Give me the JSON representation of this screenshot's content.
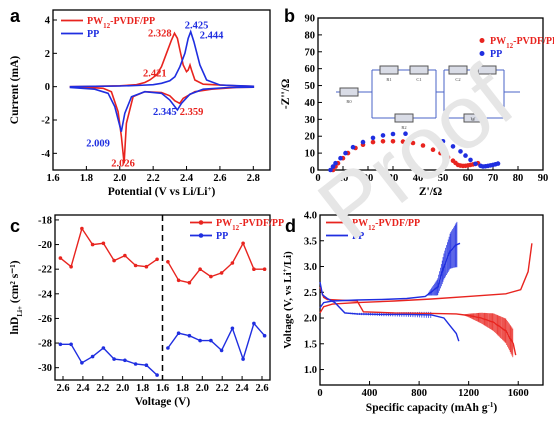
{
  "colors": {
    "red": "#e8241f",
    "blue": "#1f2ee0",
    "axis": "#000000",
    "circuit": "#4a63c7"
  },
  "watermark": "Proof",
  "chart_data": [
    {
      "panel_label": "a",
      "type": "line",
      "xlabel_main": "Potential (V vs Li/Li",
      "xlabel_sup": "+",
      "xlabel_end": ")",
      "ylabel": "Current (mA)",
      "xlim": [
        1.6,
        2.9
      ],
      "ylim": [
        -5,
        4.6
      ],
      "xticks": [
        "1.6",
        "1.8",
        "2.0",
        "2.2",
        "2.4",
        "2.6",
        "2.8"
      ],
      "xtick_values": [
        1.6,
        1.8,
        2.0,
        2.2,
        2.4,
        2.6,
        2.8
      ],
      "yticks": [
        "-4",
        "-2",
        "0",
        "2",
        "4"
      ],
      "ytick_values": [
        -4,
        -2,
        0,
        2,
        4
      ],
      "legend": [
        "PW",
        "12",
        "-PVDF/PP",
        "PP"
      ],
      "legend_position": "top-left",
      "annotations": [
        {
          "text": "2.328",
          "x": 2.24,
          "y": 3.0,
          "color": "red"
        },
        {
          "text": "2.425",
          "x": 2.46,
          "y": 3.5,
          "color": "blue"
        },
        {
          "text": "2.444",
          "x": 2.55,
          "y": 2.9,
          "color": "blue"
        },
        {
          "text": "2.421",
          "x": 2.21,
          "y": 0.6,
          "color": "red"
        },
        {
          "text": "2.345",
          "x": 2.27,
          "y": -1.7,
          "color": "blue"
        },
        {
          "text": "2.359",
          "x": 2.43,
          "y": -1.7,
          "color": "red"
        },
        {
          "text": "2.009",
          "x": 1.87,
          "y": -3.6,
          "color": "blue"
        },
        {
          "text": "2.026",
          "x": 2.02,
          "y": -4.8,
          "color": "red"
        }
      ],
      "series": [
        {
          "name": "PW12-PVDF/PP",
          "color": "red",
          "x": [
            1.7,
            1.8,
            1.9,
            1.95,
            1.99,
            2.01,
            2.026,
            2.04,
            2.08,
            2.15,
            2.25,
            2.3,
            2.33,
            2.359,
            2.38,
            2.45,
            2.55,
            2.7,
            2.8,
            2.8,
            2.7,
            2.5,
            2.45,
            2.43,
            2.421,
            2.41,
            2.4,
            2.38,
            2.36,
            2.345,
            2.328,
            2.31,
            2.28,
            2.25,
            2.22,
            2.18,
            2.15,
            2.1,
            2.0,
            1.85,
            1.7
          ],
          "y": [
            -0.02,
            -0.04,
            -0.1,
            -0.3,
            -1.5,
            -3.0,
            -4.6,
            -2.2,
            -0.6,
            -0.3,
            -0.35,
            -0.55,
            -0.85,
            -1.0,
            -0.7,
            -0.3,
            -0.15,
            -0.05,
            -0.03,
            0.02,
            0.05,
            0.15,
            0.4,
            1.0,
            1.3,
            1.0,
            0.9,
            1.3,
            2.2,
            2.9,
            3.2,
            2.8,
            2.0,
            1.2,
            0.7,
            0.4,
            0.25,
            0.12,
            0.05,
            0.02,
            0.0
          ]
        },
        {
          "name": "PP",
          "color": "blue",
          "x": [
            1.7,
            1.85,
            1.93,
            1.97,
            2.009,
            2.03,
            2.07,
            2.15,
            2.25,
            2.3,
            2.345,
            2.37,
            2.42,
            2.5,
            2.65,
            2.8,
            2.8,
            2.6,
            2.52,
            2.48,
            2.444,
            2.425,
            2.41,
            2.39,
            2.36,
            2.33,
            2.3,
            2.25,
            2.2,
            2.1,
            2.0,
            1.85,
            1.7
          ],
          "y": [
            -0.05,
            -0.15,
            -0.4,
            -1.2,
            -2.7,
            -1.6,
            -0.6,
            -0.3,
            -0.4,
            -0.8,
            -1.4,
            -1.0,
            -0.45,
            -0.15,
            -0.05,
            -0.03,
            0.02,
            0.1,
            0.4,
            1.3,
            2.7,
            3.3,
            2.9,
            2.0,
            1.2,
            0.6,
            0.35,
            0.2,
            0.12,
            0.07,
            0.04,
            0.02,
            0.0
          ]
        }
      ]
    },
    {
      "panel_label": "b",
      "type": "scatter",
      "xlabel": "Z'/Ω",
      "ylabel": "-Z''/Ω",
      "xlim": [
        0,
        90
      ],
      "ylim": [
        0,
        90
      ],
      "xticks": [
        "0",
        "10",
        "20",
        "30",
        "40",
        "50",
        "60",
        "70",
        "80",
        "90"
      ],
      "xtick_values": [
        0,
        10,
        20,
        30,
        40,
        50,
        60,
        70,
        80,
        90
      ],
      "yticks": [
        "0",
        "10",
        "20",
        "30",
        "40",
        "50",
        "60",
        "70",
        "80",
        "90"
      ],
      "ytick_values": [
        0,
        10,
        20,
        30,
        40,
        50,
        60,
        70,
        80,
        90
      ],
      "legend": [
        "PW",
        "12",
        "-PVDF/PP",
        "PP"
      ],
      "legend_position": "top-right",
      "circuit_labels": [
        "R0",
        "R1",
        "C1",
        "R2",
        "C2",
        "W"
      ],
      "series": [
        {
          "name": "PW12-PVDF/PP",
          "color": "red",
          "x": [
            6,
            7,
            8,
            10,
            12,
            15,
            18,
            22,
            26,
            30,
            34,
            38,
            42,
            46,
            49,
            52,
            54,
            55,
            56,
            57,
            58,
            59,
            60,
            61,
            62,
            63,
            64
          ],
          "y": [
            0,
            2,
            4,
            7,
            10,
            13,
            15,
            16.5,
            17,
            17,
            16.8,
            16,
            14.5,
            12,
            10,
            7.5,
            5.5,
            4.2,
            3,
            2.6,
            2.4,
            2.5,
            2.7,
            3,
            3.3,
            3.6,
            4
          ]
        },
        {
          "name": "PP",
          "color": "blue",
          "x": [
            5,
            6,
            7,
            9,
            11,
            14,
            18,
            22,
            26,
            30,
            35,
            40,
            45,
            50,
            54,
            57,
            59,
            61,
            63,
            65,
            66,
            67,
            68,
            69,
            70,
            71,
            72
          ],
          "y": [
            0,
            2,
            4,
            7,
            10,
            13.5,
            16.5,
            19,
            20.5,
            21.3,
            21.5,
            21,
            19.5,
            17,
            14,
            11,
            8.5,
            6,
            3.7,
            2.5,
            2.1,
            2.2,
            2.4,
            2.7,
            3,
            3.4,
            3.8
          ]
        }
      ]
    },
    {
      "panel_label": "c",
      "type": "line",
      "xlabel": "Voltage (V)",
      "ylabel_main": "lnD",
      "ylabel_sub": "Li+",
      "ylabel_end": " (cm² s⁻¹)",
      "ylim": [
        -31,
        -17.6
      ],
      "xtick_labels": [
        "2.6",
        "2.4",
        "2.2",
        "2.0",
        "1.8",
        "1.6",
        "1.8",
        "2.0",
        "2.2",
        "2.4",
        "2.6"
      ],
      "yticks": [
        "-18",
        "-20",
        "-22",
        "-24",
        "-26",
        "-28",
        "-30"
      ],
      "ytick_values": [
        -18,
        -20,
        -22,
        -24,
        -26,
        -28,
        -30
      ],
      "legend": [
        "PW",
        "12",
        "-PVDF/PP",
        "PP"
      ],
      "legend_position": "top-right",
      "series": [
        {
          "name": "PW12-PVDF/PP left",
          "color": "red",
          "x": [
            2.6,
            2.5,
            2.4,
            2.3,
            2.2,
            2.1,
            2.0,
            1.9,
            1.8,
            1.7
          ],
          "y": [
            -21.1,
            -21.8,
            -18.7,
            -20.0,
            -19.9,
            -21.3,
            -20.9,
            -21.7,
            -21.8,
            -21.2
          ]
        },
        {
          "name": "PW12-PVDF/PP right",
          "color": "red",
          "x": [
            1.7,
            1.8,
            1.9,
            2.0,
            2.1,
            2.2,
            2.3,
            2.4,
            2.5,
            2.6
          ],
          "y": [
            -21.4,
            -22.9,
            -23.1,
            -22.0,
            -22.6,
            -22.3,
            -21.5,
            -19.9,
            -22.0,
            -22.0
          ]
        },
        {
          "name": "PP left",
          "color": "blue",
          "x": [
            2.6,
            2.5,
            2.4,
            2.3,
            2.2,
            2.1,
            2.0,
            1.9,
            1.8,
            1.7
          ],
          "y": [
            -28.1,
            -28.1,
            -29.6,
            -29.1,
            -28.4,
            -29.3,
            -29.4,
            -29.7,
            -29.8,
            -30.6
          ]
        },
        {
          "name": "PP right",
          "color": "blue",
          "x": [
            1.7,
            1.8,
            1.9,
            2.0,
            2.1,
            2.2,
            2.3,
            2.4,
            2.5,
            2.6
          ],
          "y": [
            -28.4,
            -27.2,
            -27.4,
            -27.8,
            -27.8,
            -28.6,
            -26.8,
            -29.3,
            -26.4,
            -27.4
          ]
        }
      ]
    },
    {
      "panel_label": "d",
      "type": "line",
      "xlabel_main": "Specific capacity (mAh g",
      "xlabel_sup": "-1",
      "xlabel_end": ")",
      "ylabel_main": "Voltage (V, vs Li",
      "ylabel_sup": "+",
      "ylabel_end": "/Li)",
      "xlim": [
        0,
        1800
      ],
      "ylim": [
        0.7,
        4.0
      ],
      "xticks": [
        "0",
        "400",
        "800",
        "1200",
        "1600"
      ],
      "xtick_values": [
        0,
        400,
        800,
        1200,
        1600
      ],
      "yticks": [
        "1.0",
        "1.5",
        "2.0",
        "2.5",
        "3.0",
        "3.5",
        "4.0"
      ],
      "ytick_values": [
        1.0,
        1.5,
        2.0,
        2.5,
        3.0,
        3.5,
        4.0
      ],
      "legend": [
        "PW",
        "12",
        "-PVDF/PP",
        "PP"
      ],
      "legend_position": "top-left",
      "series": [
        {
          "name": "PW12-PVDF/PP charge",
          "color": "red",
          "x": [
            0,
            30,
            100,
            300,
            600,
            900,
            1200,
            1500,
            1620,
            1680,
            1710
          ],
          "y": [
            2.1,
            2.22,
            2.27,
            2.3,
            2.33,
            2.37,
            2.42,
            2.47,
            2.55,
            2.9,
            3.45
          ]
        },
        {
          "name": "PW12-PVDF/PP discharge",
          "color": "red",
          "x": [
            0,
            30,
            60,
            300,
            350,
            600,
            900,
            1100,
            1200,
            1300,
            1400,
            1500,
            1560,
            1580
          ],
          "y": [
            2.6,
            2.4,
            2.36,
            2.33,
            2.12,
            2.1,
            2.09,
            2.08,
            2.05,
            2.0,
            1.92,
            1.75,
            1.5,
            1.28
          ]
        },
        {
          "name": "PP charge",
          "color": "blue",
          "x": [
            0,
            30,
            100,
            300,
            500,
            700,
            850,
            950,
            1000,
            1050,
            1100,
            1130
          ],
          "y": [
            2.2,
            2.3,
            2.33,
            2.35,
            2.36,
            2.38,
            2.42,
            2.6,
            3.0,
            3.3,
            3.42,
            3.45
          ]
        },
        {
          "name": "PP discharge",
          "color": "blue",
          "x": [
            0,
            20,
            60,
            120,
            200,
            300,
            500,
            700,
            900,
            1000,
            1050,
            1100,
            1120
          ],
          "y": [
            2.7,
            2.45,
            2.38,
            2.3,
            2.1,
            2.08,
            2.07,
            2.07,
            2.06,
            2.0,
            1.85,
            1.7,
            1.55
          ]
        }
      ]
    }
  ]
}
